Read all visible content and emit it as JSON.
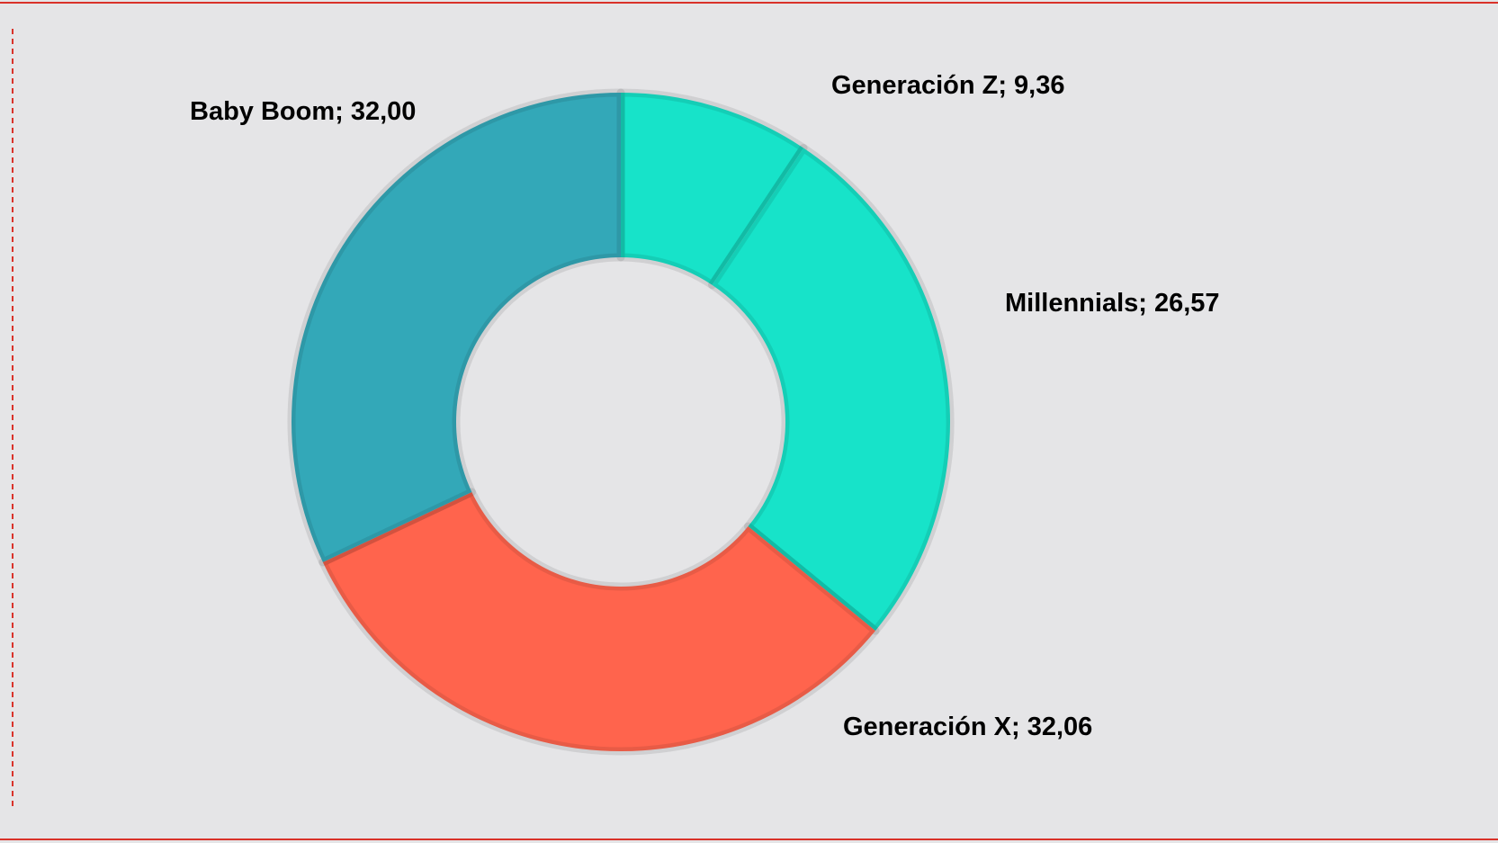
{
  "chart_data": {
    "type": "donut",
    "categories": [
      "Generación Z",
      "Millennials",
      "Generación X",
      "Baby Boom"
    ],
    "values": [
      9.36,
      26.57,
      32.06,
      32.0
    ],
    "value_labels": [
      "9,36",
      "26,57",
      "32,06",
      "32,00"
    ],
    "label_separator": "; ",
    "colors": [
      "#17e3c9",
      "#17e3c9",
      "#ff644d",
      "#33a8b8"
    ]
  }
}
